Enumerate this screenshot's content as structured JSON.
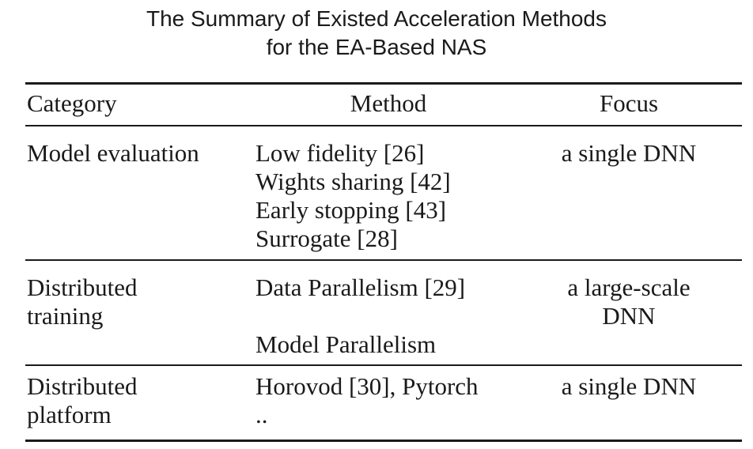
{
  "caption": {
    "line1": "The Summary of Existed Acceleration Methods",
    "line2": "for the EA-Based NAS"
  },
  "table": {
    "headers": {
      "category": "Category",
      "method": "Method",
      "focus": "Focus"
    },
    "rows": [
      {
        "category": [
          "Model evaluation"
        ],
        "method": [
          "Low fidelity [26]",
          "Wights sharing [42]",
          "Early stopping [43]",
          "Surrogate [28]"
        ],
        "focus": [
          "a single DNN"
        ]
      },
      {
        "category": [
          "Distributed",
          "training"
        ],
        "method": [
          "Data Parallelism [29]",
          "",
          "Model Parallelism"
        ],
        "focus": [
          "a large-scale",
          "DNN"
        ]
      },
      {
        "category": [
          "Distributed",
          "platform"
        ],
        "method": [
          "Horovod [30], Pytorch",
          ".."
        ],
        "focus": [
          "a single DNN"
        ]
      }
    ]
  }
}
